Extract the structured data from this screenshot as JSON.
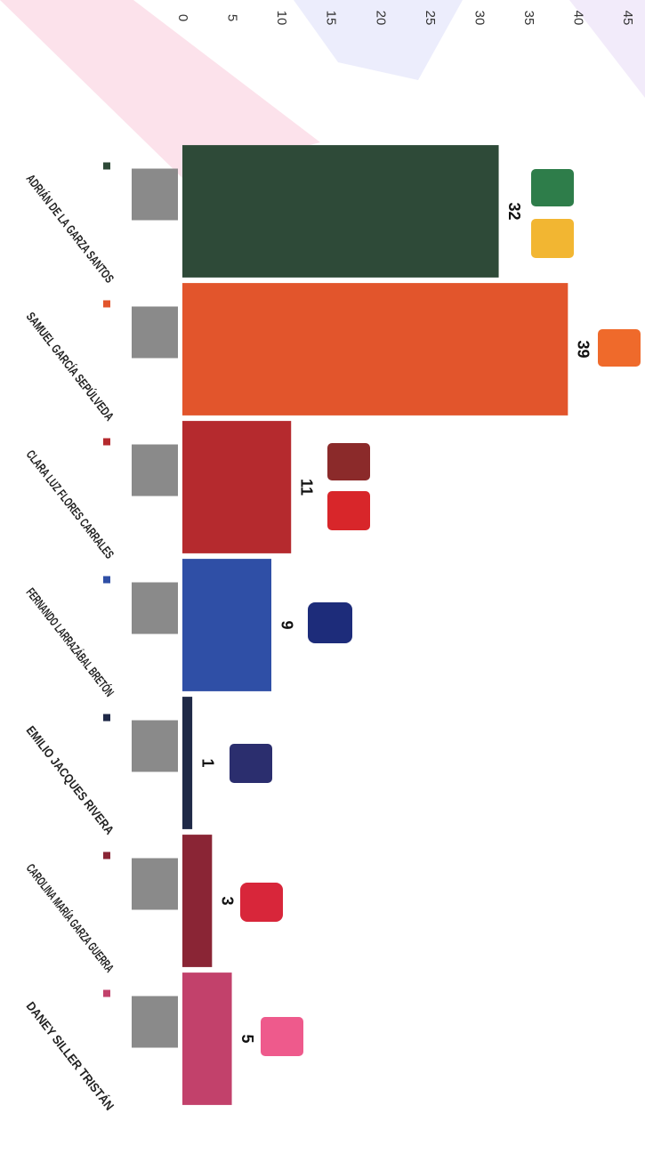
{
  "chart_data": {
    "type": "bar",
    "orientation": "horizontal",
    "categories": [
      "ADRIÁN DE LA GARZA SANTOS",
      "SAMUEL GARCÍA SEPÚLVEDA",
      "CLARA LUZ FLORES CARRALES",
      "FERNANDO LARRAZÁBAL BRETÓN",
      "EMILIO JACQUES RIVERA",
      "CAROLINA MARÍA GARZA GUERRA",
      "DANEY SILLER TRISTÁN"
    ],
    "series": [
      {
        "values": [
          32,
          39,
          11,
          9,
          1,
          3,
          5
        ],
        "colors": [
          "#2e4a38",
          "#e2552c",
          "#b52a2e",
          "#2f4fa6",
          "#1f2947",
          "#8a2535",
          "#c2416b"
        ]
      }
    ],
    "xlim": [
      0,
      45
    ],
    "xticks": [
      0,
      5,
      10,
      15,
      20,
      25,
      30,
      35,
      40,
      45
    ]
  }
}
